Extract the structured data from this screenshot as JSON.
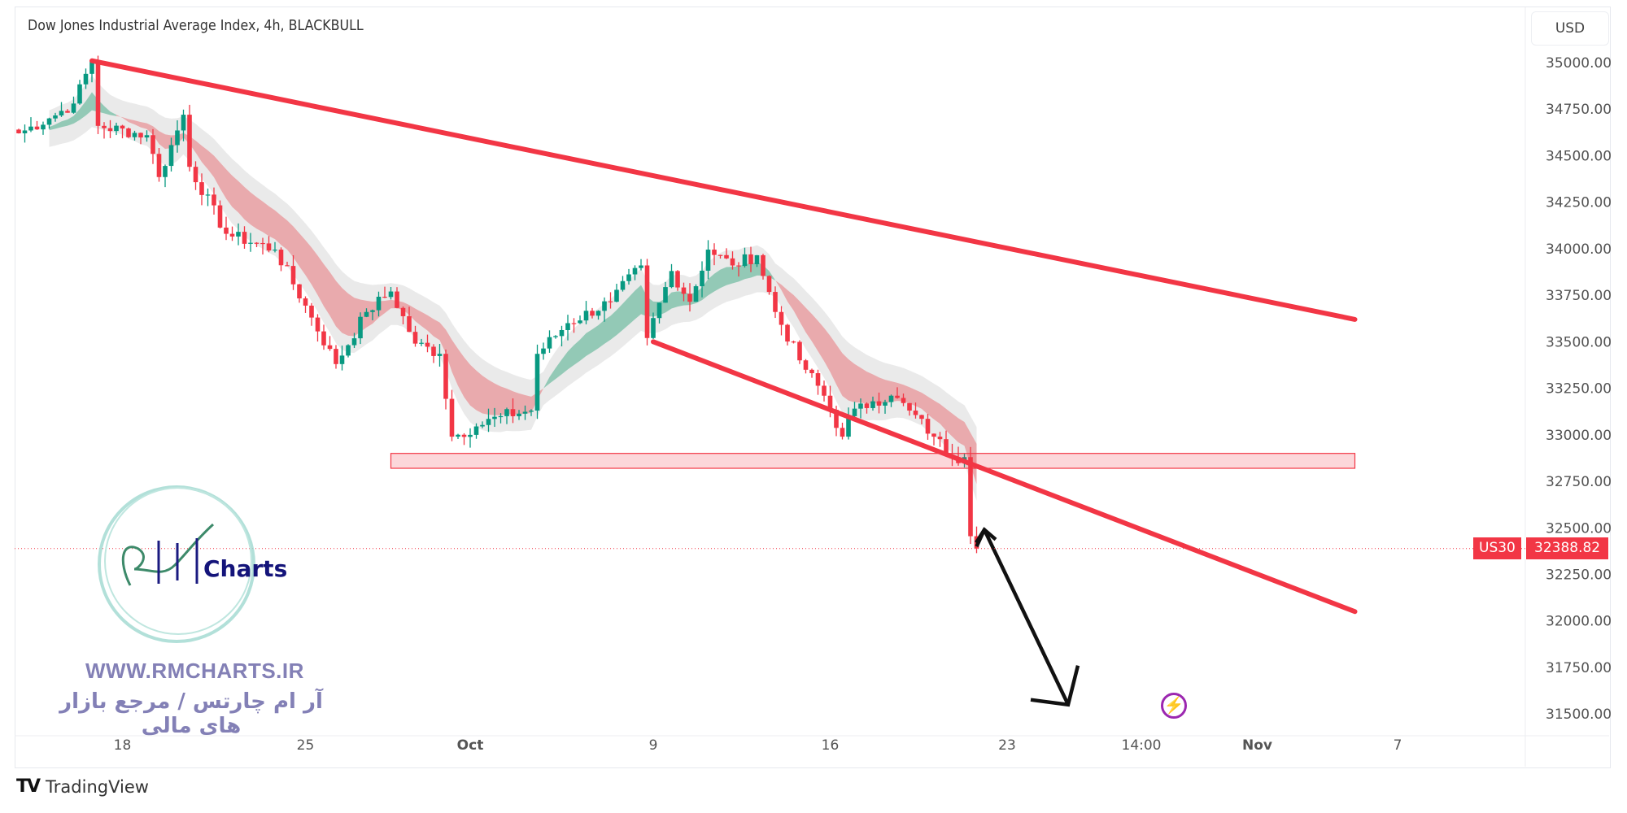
{
  "header": {
    "title": "Dow Jones Industrial Average Index, 4h, BLACKBULL",
    "currency": "USD"
  },
  "price_badge": {
    "symbol": "US30",
    "price": "32388.82"
  },
  "watermark": {
    "url": "WWW.RMCHARTS.IR",
    "tagline_fa": "آر ام چارتس / مرجع بازار های مالی",
    "logo_text": "RM Charts"
  },
  "footer": {
    "brand": "TradingView",
    "logo": "TV"
  },
  "colors": {
    "up": "#089981",
    "down": "#f23645",
    "trendline": "#f23645",
    "arrow": "#111111",
    "zone": "#f23645",
    "bolt": "#9c27b0"
  },
  "chart_data": {
    "type": "candlestick",
    "title": "Dow Jones Industrial Average Index, 4h, BLACKBULL",
    "ylabel": "USD",
    "ylim": [
      31300,
      35150
    ],
    "y_ticks": [
      "35000.00",
      "34750.00",
      "34500.00",
      "34250.00",
      "34000.00",
      "33750.00",
      "33500.00",
      "33250.00",
      "33000.00",
      "32750.00",
      "32500.00",
      "32250.00",
      "32000.00",
      "31750.00",
      "31500.00"
    ],
    "x_ticks": [
      {
        "label": "18",
        "bar": 17
      },
      {
        "label": "25",
        "bar": 47
      },
      {
        "label": "Oct",
        "bar": 74
      },
      {
        "label": "9",
        "bar": 104
      },
      {
        "label": "16",
        "bar": 133
      },
      {
        "label": "23",
        "bar": 162
      },
      {
        "label": "14:00",
        "bar": 184
      },
      {
        "label": "Nov",
        "bar": 203
      },
      {
        "label": "7",
        "bar": 226
      }
    ],
    "bar_count": 190,
    "price_waypoints": [
      [
        0,
        34620
      ],
      [
        5,
        34700
      ],
      [
        9,
        34780
      ],
      [
        12,
        35010
      ],
      [
        13,
        34660
      ],
      [
        21,
        34610
      ],
      [
        23,
        34385
      ],
      [
        27,
        34720
      ],
      [
        28,
        34440
      ],
      [
        34,
        34080
      ],
      [
        42,
        33995
      ],
      [
        48,
        33630
      ],
      [
        52,
        33380
      ],
      [
        57,
        33660
      ],
      [
        61,
        33770
      ],
      [
        65,
        33490
      ],
      [
        69,
        33435
      ],
      [
        71,
        32990
      ],
      [
        75,
        33045
      ],
      [
        79,
        33100
      ],
      [
        84,
        33130
      ],
      [
        85,
        33435
      ],
      [
        90,
        33600
      ],
      [
        97,
        33715
      ],
      [
        102,
        33910
      ],
      [
        103,
        33520
      ],
      [
        107,
        33880
      ],
      [
        110,
        33715
      ],
      [
        113,
        33995
      ],
      [
        117,
        33910
      ],
      [
        121,
        33965
      ],
      [
        124,
        33660
      ],
      [
        128,
        33400
      ],
      [
        132,
        33210
      ],
      [
        135,
        32990
      ],
      [
        136,
        33100
      ],
      [
        140,
        33180
      ],
      [
        143,
        33210
      ],
      [
        146,
        33130
      ],
      [
        150,
        32990
      ],
      [
        153,
        32880
      ],
      [
        155,
        32880
      ],
      [
        156,
        32455
      ],
      [
        157,
        32388.82
      ]
    ],
    "last_price": 32388.82,
    "annotations": {
      "upper_trendline": {
        "from": [
          12,
          35010
        ],
        "to": [
          219,
          33620
        ]
      },
      "lower_trendline": {
        "from": [
          104,
          33500
        ],
        "to": [
          219,
          32050
        ]
      },
      "support_zone": {
        "from_bar": 61,
        "to_bar": 219,
        "price_low": 32820,
        "price_high": 32900
      },
      "projection_arrow": {
        "from": [
          157,
          32400
        ],
        "via": [
          158,
          32490
        ],
        "to": [
          172,
          31550
        ]
      }
    }
  }
}
